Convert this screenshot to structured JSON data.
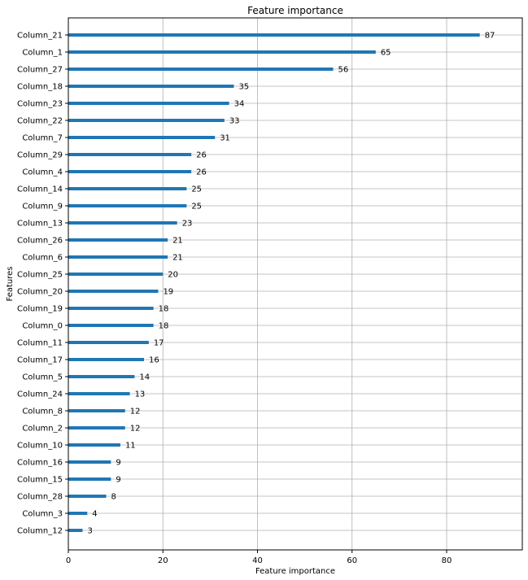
{
  "chart_data": {
    "type": "bar",
    "orientation": "horizontal",
    "title": "Feature importance",
    "xlabel": "Feature importance",
    "ylabel": "Features",
    "xlim": [
      0,
      96
    ],
    "x_ticks": [
      0,
      20,
      40,
      60,
      80
    ],
    "grid": true,
    "bar_color": "#1f77b4",
    "categories": [
      "Column_21",
      "Column_1",
      "Column_27",
      "Column_18",
      "Column_23",
      "Column_22",
      "Column_7",
      "Column_29",
      "Column_4",
      "Column_14",
      "Column_9",
      "Column_13",
      "Column_26",
      "Column_6",
      "Column_25",
      "Column_20",
      "Column_19",
      "Column_0",
      "Column_11",
      "Column_17",
      "Column_5",
      "Column_24",
      "Column_8",
      "Column_2",
      "Column_10",
      "Column_16",
      "Column_15",
      "Column_28",
      "Column_3",
      "Column_12"
    ],
    "values": [
      87,
      65,
      56,
      35,
      34,
      33,
      31,
      26,
      26,
      25,
      25,
      23,
      21,
      21,
      20,
      19,
      18,
      18,
      17,
      16,
      14,
      13,
      12,
      12,
      11,
      9,
      9,
      8,
      4,
      3
    ]
  }
}
